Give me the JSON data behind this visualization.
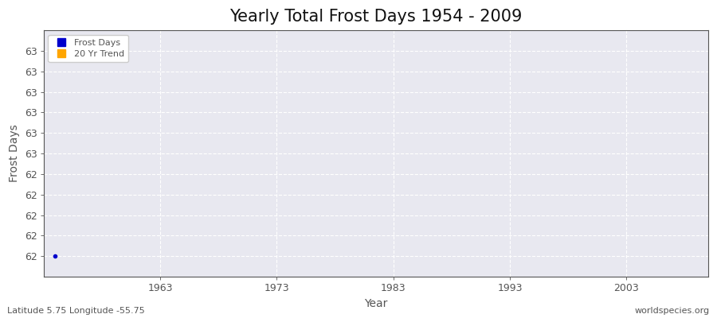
{
  "title": "Yearly Total Frost Days 1954 - 2009",
  "xlabel": "Year",
  "ylabel": "Frost Days",
  "year_start": 1954,
  "year_end": 2009,
  "frost_days_value": 62.0,
  "xticks": [
    1963,
    1973,
    1983,
    1993,
    2003
  ],
  "xlim_start": 1953,
  "xlim_end": 2010,
  "ylim_bottom": 61.9,
  "ylim_top": 63.1,
  "n_yticks": 11,
  "ytick_bottom": 62.0,
  "ytick_top": 63.0,
  "frost_color": "#0000cc",
  "trend_color": "#ffa500",
  "plot_bg_color": "#e8e8f0",
  "fig_bg_color": "#ffffff",
  "grid_color": "#ffffff",
  "grid_style": "--",
  "axis_color": "#555555",
  "text_color": "#555555",
  "title_color": "#111111",
  "subtitle_left": "Latitude 5.75 Longitude -55.75",
  "subtitle_right": "worldspecies.org",
  "legend_labels": [
    "Frost Days",
    "20 Yr Trend"
  ],
  "legend_colors": [
    "#0000cc",
    "#ffa500"
  ],
  "title_fontsize": 15,
  "axis_label_fontsize": 10,
  "tick_fontsize": 9,
  "subtitle_fontsize": 8
}
